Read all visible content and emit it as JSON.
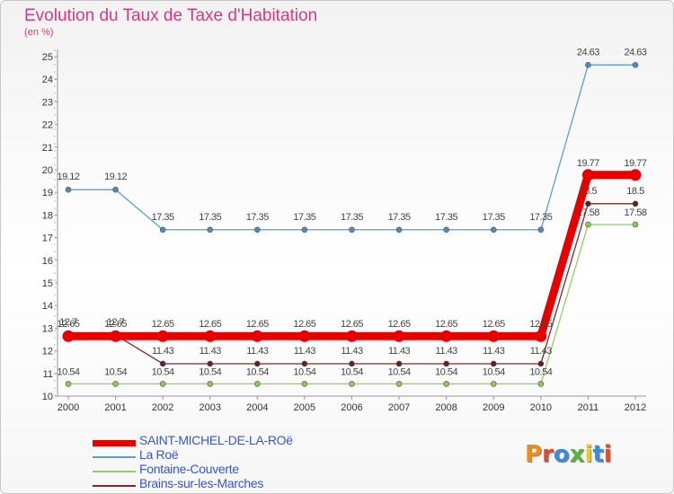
{
  "title": "Evolution du Taux de Taxe d'Habitation",
  "subtitle": "(en %)",
  "logo_text": "Proxiti",
  "logo_colors": [
    "#f08c1e",
    "#e04b2a",
    "#3c8ad8",
    "#5ab43c",
    "#f0c81e",
    "#3c8ad8",
    "#e04b2a"
  ],
  "chart_data": {
    "type": "line",
    "title": "Evolution du Taux de Taxe d'Habitation",
    "ylabel": "(en %)",
    "xlabel": "",
    "ylim": [
      10,
      25
    ],
    "yticks": [
      10,
      11,
      12,
      13,
      14,
      15,
      16,
      17,
      18,
      19,
      20,
      21,
      22,
      23,
      24,
      25
    ],
    "x": [
      "2000",
      "2001",
      "2002",
      "2003",
      "2004",
      "2005",
      "2006",
      "2007",
      "2008",
      "2009",
      "2010",
      "2011",
      "2012"
    ],
    "series": [
      {
        "name": "SAINT-MICHEL-DE-LA-ROë",
        "color": "#e60000",
        "values": [
          12.65,
          12.65,
          12.65,
          12.65,
          12.65,
          12.65,
          12.65,
          12.65,
          12.65,
          12.65,
          12.65,
          19.77,
          19.77
        ],
        "labels": [
          "12.65",
          "12.65",
          "12.65",
          "12.65",
          "12.65",
          "12.65",
          "12.65",
          "12.65",
          "12.65",
          "12.65",
          "12.65",
          "19.77",
          "19.77"
        ]
      },
      {
        "name": "La Roë",
        "color": "#5f9cc9",
        "values": [
          19.12,
          19.12,
          17.35,
          17.35,
          17.35,
          17.35,
          17.35,
          17.35,
          17.35,
          17.35,
          17.35,
          24.63,
          24.63
        ],
        "labels": [
          "19.12",
          "19.12",
          "17.35",
          "17.35",
          "17.35",
          "17.35",
          "17.35",
          "17.35",
          "17.35",
          "17.35",
          "17.35",
          "24.63",
          "24.63"
        ]
      },
      {
        "name": "Fontaine-Couverte",
        "color": "#90d060",
        "values": [
          10.54,
          10.54,
          10.54,
          10.54,
          10.54,
          10.54,
          10.54,
          10.54,
          10.54,
          10.54,
          10.54,
          17.58,
          17.58
        ],
        "labels": [
          "10.54",
          "10.54",
          "10.54",
          "10.54",
          "10.54",
          "10.54",
          "10.54",
          "10.54",
          "10.54",
          "10.54",
          "10.54",
          "17.58",
          "17.58"
        ]
      },
      {
        "name": "Brains-sur-les-Marches",
        "color": "#7a2a2a",
        "values": [
          12.7,
          12.7,
          11.43,
          11.43,
          11.43,
          11.43,
          11.43,
          11.43,
          11.43,
          11.43,
          11.43,
          18.5,
          18.5
        ],
        "labels": [
          "12.7",
          "12.7",
          "11.43",
          "11.43",
          "11.43",
          "11.43",
          "11.43",
          "11.43",
          "11.43",
          "11.43",
          "11.43",
          "18.5",
          "18.5"
        ]
      }
    ]
  }
}
